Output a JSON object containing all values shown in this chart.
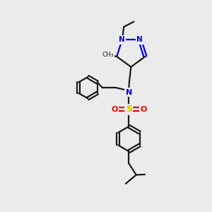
{
  "background_color": "#ebebeb",
  "bond_color": "#1a1a1a",
  "n_color": "#0000ee",
  "o_color": "#ee0000",
  "s_color": "#cccc00",
  "line_width": 1.6,
  "figsize": [
    3.0,
    3.0
  ],
  "dpi": 100,
  "xlim": [
    0,
    10
  ],
  "ylim": [
    0,
    10
  ]
}
